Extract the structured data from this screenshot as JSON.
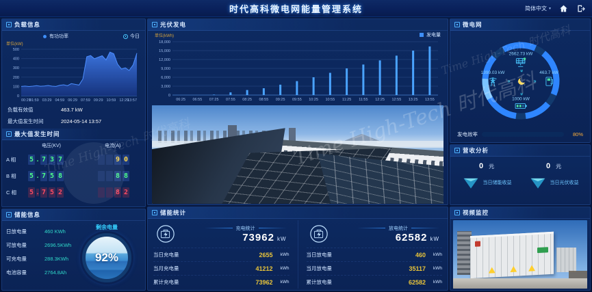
{
  "header": {
    "title": "时代高科微电网能量管理系统",
    "language": "简体中文"
  },
  "watermark": "Time High-Tech 时代高科",
  "icons": {
    "home": "home-icon",
    "logout": "logout-icon",
    "caret": "▾"
  },
  "load_panel": {
    "title": "负载信息",
    "legend": "有功功率",
    "range_label": "今日",
    "y_unit": "单位(kW)",
    "rms_label": "负载有效值",
    "rms_value": "463.7 kW",
    "max_time_label": "最大值发生时间",
    "max_time_value": "2024-05-14 13:57",
    "max_section_title": "最大值发生时间",
    "voltage_header": "电压(KV)",
    "current_header": "电流(A)",
    "phases": [
      {
        "name": "A 相",
        "voltage": "5.737",
        "current": "90",
        "state": "normal"
      },
      {
        "name": "B 相",
        "voltage": "5.758",
        "current": "88",
        "state": "normal"
      },
      {
        "name": "C 相",
        "voltage": "5.752",
        "current": "82",
        "state": "alarm"
      }
    ]
  },
  "storage_info": {
    "title": "储能信息",
    "rows": [
      {
        "label": "日放电量",
        "value": "460 KWh"
      },
      {
        "label": "可放电量",
        "value": "2696.5KWh"
      },
      {
        "label": "可充电量",
        "value": "288.3KWh"
      },
      {
        "label": "电池容量",
        "value": "2764.8Ah"
      }
    ],
    "gauge_label": "剩余电量",
    "gauge_value": "92%"
  },
  "pv_panel": {
    "title": "光伏发电",
    "legend": "发电量",
    "y_unit": "单位(kWh)"
  },
  "microgrid": {
    "title": "微电网",
    "pv_value": "2662.73 kW",
    "grid_value": "1399.03 kW",
    "load_value": "463.7 kW",
    "storage_value": "1000 kW",
    "efficiency_label": "发电效率",
    "efficiency_percent": "80%"
  },
  "revenue": {
    "title": "营收分析",
    "items": [
      {
        "value": "0",
        "unit": "元",
        "label": "当日储能收益"
      },
      {
        "value": "0",
        "unit": "元",
        "label": "当日光伏收益"
      }
    ]
  },
  "storage_stats": {
    "title": "储能统计",
    "charge": {
      "header": "充电统计",
      "total": "73962",
      "unit": "kW",
      "rows": [
        {
          "label": "当日充电量",
          "value": "2655",
          "unit": "kWh"
        },
        {
          "label": "当月充电量",
          "value": "41212",
          "unit": "kWh"
        },
        {
          "label": "累计充电量",
          "value": "73962",
          "unit": "kWh"
        }
      ]
    },
    "discharge": {
      "header": "放电统计",
      "total": "62582",
      "unit": "kW",
      "rows": [
        {
          "label": "当日放电量",
          "value": "460",
          "unit": "kWh"
        },
        {
          "label": "当月放电量",
          "value": "35117",
          "unit": "kWh"
        },
        {
          "label": "累计放电量",
          "value": "62582",
          "unit": "kWh"
        }
      ]
    }
  },
  "video_panel": {
    "title": "视频监控"
  },
  "chart_data": [
    {
      "type": "area",
      "x": [
        "00:29",
        "01:59",
        "03:29",
        "04:59",
        "06:29",
        "07:59",
        "09:29",
        "10:59",
        "12:29",
        "13:57"
      ],
      "values": [
        100,
        104,
        99,
        103,
        108,
        102,
        105,
        110,
        103,
        100,
        112,
        118,
        108,
        130,
        122,
        115,
        180,
        420,
        432,
        398,
        415,
        430,
        385,
        470,
        452,
        340,
        287,
        300,
        272,
        330,
        458
      ],
      "ylim": [
        0,
        500
      ],
      "y_ticks": [
        0,
        100,
        200,
        300,
        400,
        500
      ],
      "ylabel": "单位(kW)",
      "legend": [
        "有功功率"
      ],
      "legend_position": "top",
      "grid": true,
      "color": "#2a62d8"
    },
    {
      "type": "bar",
      "categories": [
        "06:25",
        "06:55",
        "07:25",
        "07:55",
        "08:25",
        "08:55",
        "09:25",
        "09:55",
        "10:25",
        "10:55",
        "11:25",
        "11:55",
        "12:25",
        "12:55",
        "13:25",
        "13:55"
      ],
      "values": [
        0,
        0,
        150,
        900,
        1700,
        2300,
        3500,
        4700,
        6000,
        7500,
        9000,
        10300,
        11700,
        13300,
        15000,
        16400
      ],
      "ylim": [
        0,
        18000
      ],
      "y_ticks": [
        0,
        3000,
        6000,
        9000,
        12000,
        15000,
        18000
      ],
      "y_tick_labels": [
        "0",
        "3,000",
        "6,000",
        "9,000",
        "12,000",
        "15,000",
        "18,000"
      ],
      "ylabel": "单位(kWh)",
      "legend": [
        "发电量"
      ],
      "legend_position": "top-right",
      "grid": true,
      "color": "#4aa3ff"
    }
  ]
}
